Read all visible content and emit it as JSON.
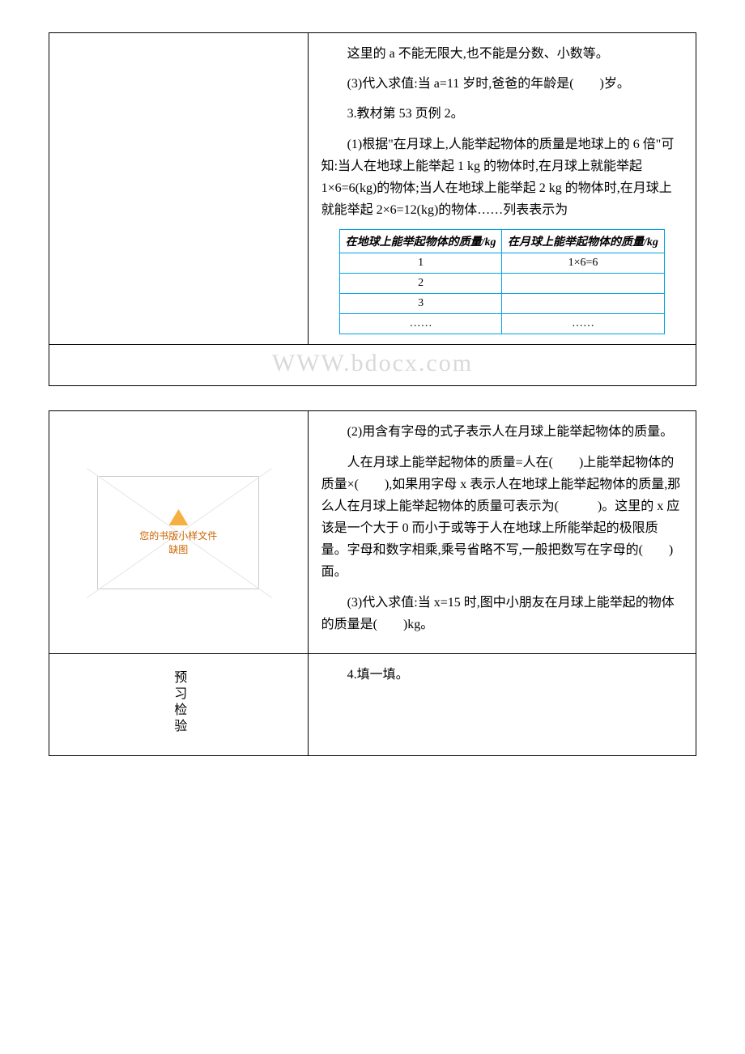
{
  "section1": {
    "left_blank": "",
    "right": {
      "p1": "这里的 a 不能无限大,也不能是分数、小数等。",
      "p2": "(3)代入求值:当 a=11 岁时,爸爸的年龄是(　　)岁。",
      "p3": "3.教材第 53 页例 2。",
      "p4": "(1)根据\"在月球上,人能举起物体的质量是地球上的 6 倍\"可知:当人在地球上能举起 1 kg 的物体时,在月球上就能举起 1×6=6(kg)的物体;当人在地球上能举起 2 kg 的物体时,在月球上就能举起 2×6=12(kg)的物体……列表表示为",
      "table": {
        "h1": "在地球上能举起物体的质量/kg",
        "h2": "在月球上能举起物体的质量/kg",
        "r1c1": "1",
        "r1c2": "1×6=6",
        "r2c1": "2",
        "r2c2": "",
        "r3c1": "3",
        "r3c2": "",
        "r4c1": "……",
        "r4c2": "……"
      }
    }
  },
  "watermark": "WWW.bdocx.com",
  "section2": {
    "row1": {
      "left_placeholder_text": "您的书版小样文件缺图",
      "right": {
        "p1": "(2)用含有字母的式子表示人在月球上能举起物体的质量。",
        "p2": "人在月球上能举起物体的质量=人在(　　)上能举起物体的质量×(　　),如果用字母 x 表示人在地球上能举起物体的质量,那么人在月球上能举起物体的质量可表示为(　　　)。这里的 x 应该是一个大于 0 而小于或等于人在地球上所能举起的极限质量。字母和数字相乘,乘号省略不写,一般把数写在字母的(　　)面。",
        "p3": "(3)代入求值:当 x=15 时,图中小朋友在月球上能举起的物体的质量是(　　)kg。"
      }
    },
    "row2": {
      "left_label": "预习检验",
      "right": "4.填一填。"
    }
  },
  "colors": {
    "table_border": "#00a2e8",
    "watermark": "#d9d9d9",
    "placeholder_warn": "#f5b041",
    "placeholder_text": "#cc6600"
  }
}
